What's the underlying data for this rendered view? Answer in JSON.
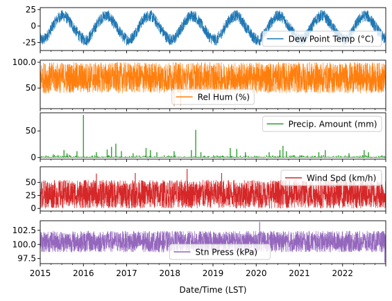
{
  "chart_data": [
    {
      "type": "line",
      "series": [
        {
          "name": "Dew Point Temp (°C)",
          "color": "#1f77b4",
          "pattern": "seasonal",
          "seasonal_values": [
            -20,
            -21,
            -14,
            -5,
            5,
            12,
            16,
            15,
            8,
            0,
            -8,
            -16
          ]
        }
      ],
      "y_ticks": [
        25,
        0,
        -25
      ],
      "ylim": [
        -37,
        28
      ],
      "data_range": [
        -34,
        24
      ],
      "legend": "lower-right"
    },
    {
      "type": "line",
      "series": [
        {
          "name": "Rel Hum (%)",
          "color": "#ff7f0e",
          "pattern": "noise-band",
          "typical_range": [
            40,
            100
          ],
          "extremes": [
            {
              "x": 2018.1,
              "y": 15
            },
            {
              "x": 2018.25,
              "y": 16
            }
          ]
        }
      ],
      "y_ticks": [
        100,
        50
      ],
      "ylim": [
        10,
        104
      ],
      "data_range": [
        14,
        100
      ],
      "legend": "lower-center"
    },
    {
      "type": "line",
      "series": [
        {
          "name": "Precip. Amount (mm)",
          "color": "#2ca02c",
          "pattern": "spikes",
          "spikes": [
            {
              "x": 2015.3,
              "y": 6
            },
            {
              "x": 2015.55,
              "y": 14
            },
            {
              "x": 2015.62,
              "y": 8
            },
            {
              "x": 2015.85,
              "y": 12
            },
            {
              "x": 2016.0,
              "y": 80
            },
            {
              "x": 2016.3,
              "y": 10
            },
            {
              "x": 2016.55,
              "y": 15
            },
            {
              "x": 2016.65,
              "y": 20
            },
            {
              "x": 2016.75,
              "y": 26
            },
            {
              "x": 2016.88,
              "y": 12
            },
            {
              "x": 2017.15,
              "y": 8
            },
            {
              "x": 2017.45,
              "y": 18
            },
            {
              "x": 2017.55,
              "y": 14
            },
            {
              "x": 2017.7,
              "y": 10
            },
            {
              "x": 2018.1,
              "y": 12
            },
            {
              "x": 2018.5,
              "y": 14
            },
            {
              "x": 2018.6,
              "y": 52
            },
            {
              "x": 2018.72,
              "y": 10
            },
            {
              "x": 2019.4,
              "y": 18
            },
            {
              "x": 2019.55,
              "y": 16
            },
            {
              "x": 2019.75,
              "y": 10
            },
            {
              "x": 2020.3,
              "y": 10
            },
            {
              "x": 2020.55,
              "y": 14
            },
            {
              "x": 2020.62,
              "y": 22
            },
            {
              "x": 2020.7,
              "y": 12
            },
            {
              "x": 2021.45,
              "y": 10
            },
            {
              "x": 2021.6,
              "y": 14
            },
            {
              "x": 2022.15,
              "y": 8
            },
            {
              "x": 2022.5,
              "y": 14
            },
            {
              "x": 2022.6,
              "y": 10
            }
          ]
        }
      ],
      "y_ticks": [
        50,
        0
      ],
      "ylim": [
        -3,
        84
      ],
      "legend": "upper-right"
    },
    {
      "type": "line",
      "series": [
        {
          "name": "Wind Spd (km/h)",
          "color": "#d62728",
          "pattern": "noise-band",
          "typical_range": [
            0,
            55
          ],
          "extremes": [
            {
              "x": 2016.3,
              "y": 67
            },
            {
              "x": 2017.2,
              "y": 68
            },
            {
              "x": 2018.4,
              "y": 76
            },
            {
              "x": 2019.2,
              "y": 68
            },
            {
              "x": 2022.9,
              "y": 68
            }
          ]
        }
      ],
      "y_ticks": [
        50,
        25,
        0
      ],
      "ylim": [
        -5,
        80
      ],
      "legend": "upper-right"
    },
    {
      "type": "line",
      "series": [
        {
          "name": "Stn Press (kPa)",
          "color": "#9467bd",
          "pattern": "noise-band",
          "typical_range": [
            98.6,
            102.4
          ],
          "extremes": [
            {
              "x": 2022.98,
              "y": 96.8
            },
            {
              "x": 2020.08,
              "y": 104
            }
          ]
        }
      ],
      "y_ticks": [
        102.5,
        100.0,
        97.5
      ],
      "ylim": [
        96.6,
        104.2
      ],
      "legend": "lower-center"
    }
  ],
  "x_axis": {
    "xlabel": "Date/Time (LST)",
    "xlim": [
      2015,
      2023
    ],
    "ticks": [
      "2015",
      "2016",
      "2017",
      "2018",
      "2019",
      "2020",
      "2021",
      "2022"
    ]
  }
}
